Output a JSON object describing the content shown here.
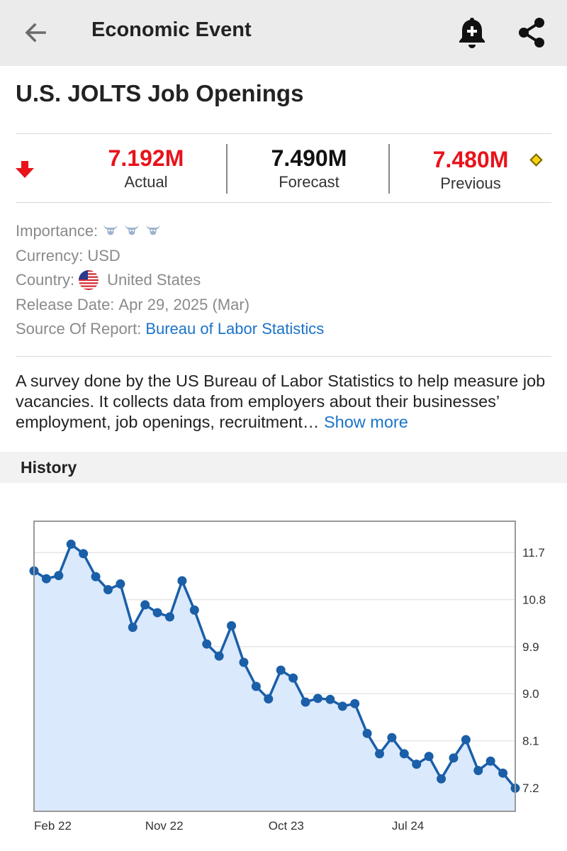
{
  "topbar": {
    "title": "Economic Event",
    "back_icon": "back-arrow-icon",
    "bell_icon": "add-alert-bell-icon",
    "share_icon": "share-icon"
  },
  "event": {
    "title": "U.S. JOLTS Job Openings"
  },
  "stats": {
    "trend_icon": "down-arrow-icon",
    "actual_value": "7.192M",
    "actual_label": "Actual",
    "forecast_value": "7.490M",
    "forecast_label": "Forecast",
    "previous_value": "7.480M",
    "previous_label": "Previous",
    "revised_icon": "revised-diamond-icon",
    "colors": {
      "negative": "#e8131b",
      "neutral": "#111111",
      "revised": "#f5d312"
    }
  },
  "info": {
    "importance_label": "Importance:",
    "importance_level": 3,
    "currency_label": "Currency:",
    "currency_value": "USD",
    "country_label": "Country:",
    "country_value": "United States",
    "release_label": "Release Date:",
    "release_value": "Apr 29, 2025 (Mar)",
    "source_label": "Source Of Report:",
    "source_value": "Bureau of Labor Statistics"
  },
  "description": {
    "text": "A survey done by the US Bureau of Labor Statistics to help measure job vacancies. It collects data from employers about their businesses’ employment, job openings, recruitment…",
    "show_more": "Show more"
  },
  "history": {
    "title": "History"
  },
  "chart_data": {
    "type": "area",
    "title": "",
    "xlabel": "",
    "ylabel": "",
    "x_tick_labels": [
      "Feb 22",
      "Nov 22",
      "Oct 23",
      "Jul 24"
    ],
    "x_tick_positions": [
      0,
      9,
      19,
      29
    ],
    "y_ticks": [
      7.2,
      8.1,
      9.0,
      9.9,
      10.8,
      11.7
    ],
    "ylim": [
      6.75,
      12.3
    ],
    "grid": true,
    "legend": "none",
    "line_color": "#1a5fa8",
    "fill_color": "#dbe9fc",
    "values": [
      11.35,
      11.2,
      11.26,
      11.86,
      11.68,
      11.24,
      10.99,
      11.1,
      10.27,
      10.7,
      10.55,
      10.47,
      11.16,
      10.6,
      9.95,
      9.72,
      10.3,
      9.6,
      9.14,
      8.9,
      9.45,
      9.3,
      8.84,
      8.91,
      8.89,
      8.76,
      8.81,
      8.24,
      7.85,
      8.16,
      7.85,
      7.65,
      7.8,
      7.37,
      7.77,
      8.12,
      7.53,
      7.71,
      7.48,
      7.192
    ]
  }
}
